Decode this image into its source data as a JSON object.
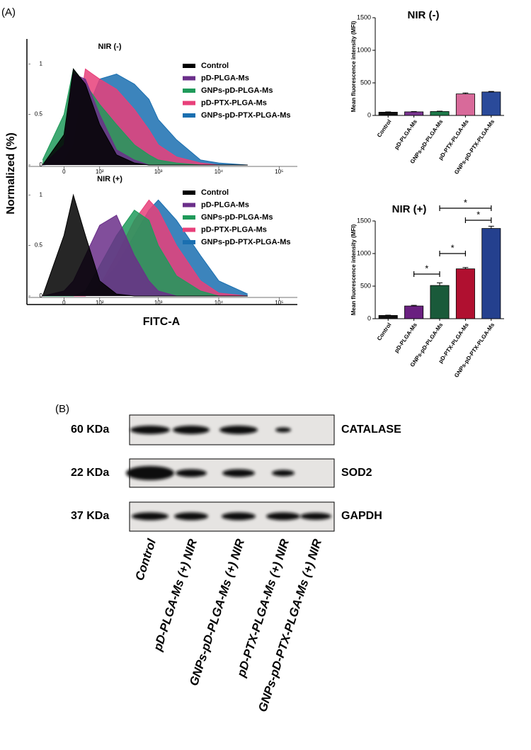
{
  "panel_labels": [
    "(A)",
    "(B)"
  ],
  "chart_data": [
    {
      "type": "area",
      "title": "NIR (-)",
      "ylabel": "Normalized (%)",
      "xscale": "asinh",
      "x": [
        -50,
        0,
        20,
        50,
        100,
        200,
        400,
        700,
        1000,
        2000,
        5000,
        10000,
        30000
      ],
      "xlim": [
        -100,
        200000
      ],
      "xticks": [
        0,
        {
          "value": 100,
          "label": "10²"
        },
        {
          "value": 1000,
          "label": "10³"
        },
        {
          "value": 10000,
          "label": "10⁴"
        },
        {
          "value": 100000,
          "label": "10⁵"
        }
      ],
      "ylim": [
        0,
        1.1
      ],
      "yticks": [
        0,
        0.5,
        1
      ],
      "series": [
        {
          "name": "Control",
          "color": "#000000",
          "values": [
            0,
            0.3,
            0.95,
            0.8,
            0.4,
            0.1,
            0.02,
            0,
            0,
            0,
            0,
            0,
            0
          ]
        },
        {
          "name": "pD-PLGA-Ms",
          "color": "#6b2f8a",
          "values": [
            0,
            0.2,
            0.9,
            0.85,
            0.5,
            0.15,
            0.05,
            0,
            0,
            0,
            0,
            0,
            0
          ]
        },
        {
          "name": "GNPs-pD-PLGA-Ms",
          "color": "#1f9a5a",
          "values": [
            0.05,
            0.5,
            0.95,
            0.8,
            0.6,
            0.4,
            0.2,
            0.1,
            0.05,
            0.02,
            0,
            0,
            0
          ]
        },
        {
          "name": "pD-PTX-PLGA-Ms",
          "color": "#e8407a",
          "values": [
            0,
            0.05,
            0.2,
            0.95,
            0.85,
            0.75,
            0.55,
            0.35,
            0.2,
            0.08,
            0.02,
            0,
            0
          ]
        },
        {
          "name": "GNPs-pD-PTX-PLGA-Ms",
          "color": "#1a6fb0",
          "values": [
            0,
            0.02,
            0.15,
            0.5,
            0.85,
            0.9,
            0.8,
            0.65,
            0.45,
            0.25,
            0.05,
            0.02,
            0
          ]
        }
      ]
    },
    {
      "type": "area",
      "title": "NIR (+)",
      "xlabel": "FITC-A",
      "xscale": "asinh",
      "x": [
        -50,
        0,
        20,
        50,
        100,
        200,
        400,
        700,
        1000,
        2000,
        5000,
        10000,
        30000
      ],
      "xlim": [
        -100,
        200000
      ],
      "xticks": [
        0,
        {
          "value": 100,
          "label": "10²"
        },
        {
          "value": 1000,
          "label": "10³"
        },
        {
          "value": 10000,
          "label": "10⁴"
        },
        {
          "value": 100000,
          "label": "10⁵"
        }
      ],
      "ylim": [
        0,
        1.1
      ],
      "yticks": [
        0,
        0.5,
        1
      ],
      "series": [
        {
          "name": "Control",
          "color": "#000000",
          "values": [
            0,
            0.6,
            1.0,
            0.6,
            0.15,
            0.02,
            0,
            0,
            0,
            0,
            0,
            0,
            0
          ]
        },
        {
          "name": "pD-PLGA-Ms",
          "color": "#6b2f8a",
          "values": [
            0,
            0.05,
            0.15,
            0.4,
            0.7,
            0.8,
            0.4,
            0.15,
            0.05,
            0,
            0,
            0,
            0
          ]
        },
        {
          "name": "GNPs-pD-PLGA-Ms",
          "color": "#1f9a5a",
          "values": [
            0,
            0,
            0,
            0.05,
            0.3,
            0.6,
            0.85,
            0.75,
            0.5,
            0.2,
            0.05,
            0,
            0
          ]
        },
        {
          "name": "pD-PTX-PLGA-Ms",
          "color": "#e8407a",
          "values": [
            0,
            0,
            0,
            0,
            0.1,
            0.4,
            0.75,
            0.95,
            0.85,
            0.5,
            0.15,
            0.03,
            0
          ]
        },
        {
          "name": "GNPs-pD-PTX-PLGA-Ms",
          "color": "#1a6fb0",
          "values": [
            0,
            0,
            0,
            0,
            0.1,
            0.3,
            0.6,
            0.85,
            0.95,
            0.75,
            0.4,
            0.15,
            0.02
          ]
        }
      ]
    },
    {
      "type": "bar",
      "title": "NIR (-)",
      "ylabel": "Mean fluorescence intensity (MFI)",
      "categories": [
        "Control",
        "pD-PLGA-Ms",
        "GNPs-pD-PLGA-Ms",
        "pD-PTX-PLGA-Ms",
        "GNPs-pD-PTX-PLGA-Ms"
      ],
      "values": [
        50,
        55,
        60,
        330,
        360
      ],
      "errors": [
        4,
        5,
        5,
        15,
        8
      ],
      "colors": [
        "#111111",
        "#7a3590",
        "#1f7a4a",
        "#d86a9a",
        "#2a4a9a"
      ],
      "ylim": [
        0,
        1500
      ],
      "yticks": [
        0,
        500,
        1000,
        1500
      ]
    },
    {
      "type": "bar",
      "title": "NIR (+)",
      "ylabel": "Mean fluorescence intensity (MFI)",
      "categories": [
        "Control",
        "pD-PLGA-Ms",
        "GNPs-pD-PLGA-Ms",
        "pD-PTX-PLGA-Ms",
        "GNPs-pD-PTX-PLGA-Ms"
      ],
      "values": [
        50,
        195,
        510,
        765,
        1385
      ],
      "errors": [
        5,
        10,
        40,
        20,
        35
      ],
      "colors": [
        "#111111",
        "#6a2080",
        "#1a5a3a",
        "#b01030",
        "#24408e"
      ],
      "ylim": [
        0,
        1500
      ],
      "yticks": [
        0,
        500,
        1000,
        1500
      ],
      "annotations": [
        "*",
        "*",
        "*",
        "*"
      ]
    }
  ],
  "blot": {
    "rows": [
      {
        "marker": "60 KDa",
        "protein": "CATALASE"
      },
      {
        "marker": "22 KDa",
        "protein": "SOD2"
      },
      {
        "marker": "37 KDa",
        "protein": "GAPDH"
      }
    ],
    "lanes": [
      "Control",
      "pD-PLGA-Ms (+) NIR",
      "GNPs-pD-PLGA-Ms (+) NIR",
      "pD-PTX-PLGA-Ms (+) NIR",
      "GNPs-pD-PTX-PLGA-Ms (+) NIR"
    ]
  }
}
